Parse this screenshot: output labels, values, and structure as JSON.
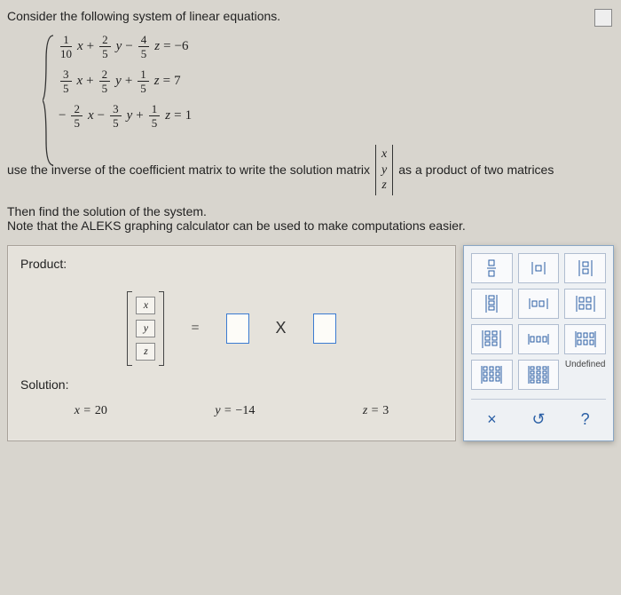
{
  "prompt": "Consider the following system of linear equations.",
  "equations": [
    {
      "t1n": "1",
      "t1d": "10",
      "v1": "x",
      "op1": "+",
      "t2n": "2",
      "t2d": "5",
      "v2": "y",
      "op2": "−",
      "t3n": "4",
      "t3d": "5",
      "v3": "z",
      "eq": "=",
      "rhs": "−6"
    },
    {
      "t1n": "3",
      "t1d": "5",
      "v1": "x",
      "op1": "+",
      "t2n": "2",
      "t2d": "5",
      "v2": "y",
      "op2": "+",
      "t3n": "1",
      "t3d": "5",
      "v3": "z",
      "eq": "=",
      "rhs": "7"
    },
    {
      "neg": "−",
      "t1n": "2",
      "t1d": "5",
      "v1": "x",
      "op1": "−",
      "t2n": "3",
      "t2d": "5",
      "v2": "y",
      "op2": "+",
      "t3n": "1",
      "t3d": "5",
      "v3": "z",
      "eq": "=",
      "rhs": "1"
    }
  ],
  "mid_text_a": "use the inverse of the coefficient matrix to write the solution matrix",
  "mid_text_b": "as a product of two matrices",
  "col_vars": [
    "x",
    "y",
    "z"
  ],
  "note_a": "Then find the solution of the system.",
  "note_b": "Note that the ALEKS graphing calculator can be used to make computations easier.",
  "product_label": "Product:",
  "solution_label": "Solution:",
  "equals": "=",
  "times": "X",
  "solution": {
    "x_lbl": "x =",
    "x_val": "20",
    "y_lbl": "y =",
    "y_val": "−14",
    "z_lbl": "z =",
    "z_val": "3"
  },
  "tools": {
    "undefined_label": "Undefined",
    "close": "×",
    "reset": "↺",
    "help": "?"
  },
  "colors": {
    "page_bg": "#d8d5ce",
    "panel_border": "#a8a29a",
    "tool_border": "#8aa6c4",
    "input_border": "#3b7bd1",
    "accent": "#2a5fa5"
  }
}
